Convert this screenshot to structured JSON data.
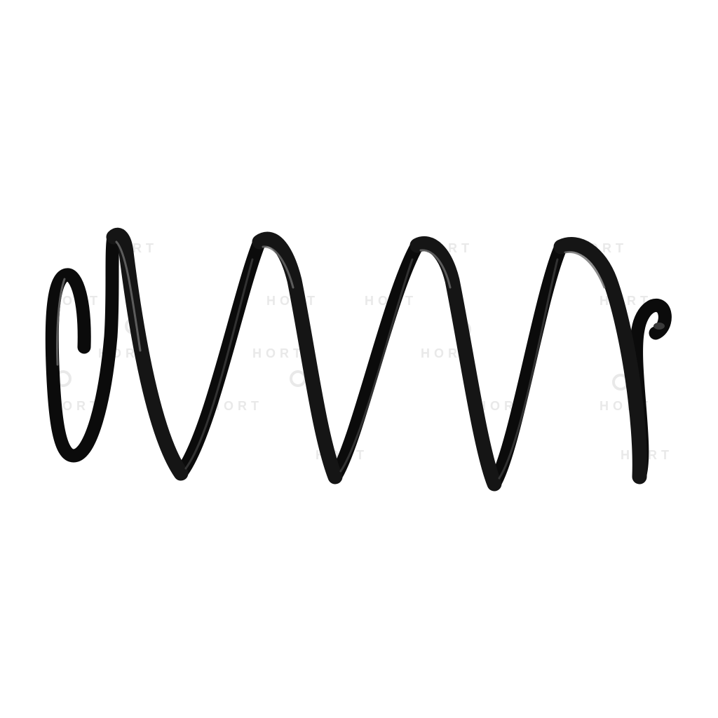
{
  "image": {
    "subject": "coil spring",
    "background_color": "#ffffff",
    "spring_color": "#141414",
    "highlight_color": "#6e6e6e"
  },
  "watermark": {
    "text": "HORT",
    "color": "#e9e9e9"
  }
}
